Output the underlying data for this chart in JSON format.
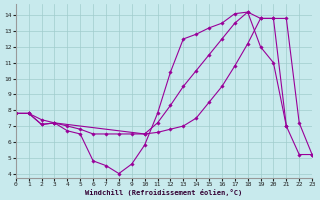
{
  "xlabel": "Windchill (Refroidissement éolien,°C)",
  "bg_color": "#c8eaed",
  "grid_color": "#a0cccc",
  "line_color": "#990099",
  "xlim": [
    0,
    23
  ],
  "ylim": [
    3.7,
    14.7
  ],
  "xticks": [
    0,
    1,
    2,
    3,
    4,
    5,
    6,
    7,
    8,
    9,
    10,
    11,
    12,
    13,
    14,
    15,
    16,
    17,
    18,
    19,
    20,
    21,
    22,
    23
  ],
  "yticks": [
    4,
    5,
    6,
    7,
    8,
    9,
    10,
    11,
    12,
    13,
    14
  ],
  "c1x": [
    0,
    1,
    2,
    3,
    4,
    5,
    6,
    7,
    8,
    9,
    10,
    11,
    12,
    13,
    14,
    15,
    16,
    17,
    18,
    19,
    20,
    21
  ],
  "c1y": [
    7.8,
    7.8,
    7.1,
    7.2,
    6.7,
    6.5,
    4.8,
    4.5,
    4.0,
    4.6,
    5.8,
    7.8,
    10.4,
    12.5,
    12.8,
    13.2,
    13.5,
    14.1,
    14.2,
    12.0,
    11.0,
    7.0
  ],
  "c2x": [
    0,
    1,
    2,
    3,
    4,
    5,
    6,
    7,
    8,
    9,
    10,
    11,
    12,
    13,
    14,
    15,
    16,
    17,
    18,
    19,
    20,
    21,
    22,
    23
  ],
  "c2y": [
    7.8,
    7.8,
    7.1,
    7.2,
    7.0,
    6.8,
    6.5,
    6.5,
    6.5,
    6.5,
    6.5,
    6.6,
    6.8,
    7.0,
    7.5,
    8.5,
    9.5,
    10.8,
    12.2,
    13.8,
    13.8,
    7.0,
    5.2,
    5.2
  ],
  "c3x": [
    0,
    1,
    2,
    3,
    10,
    11,
    12,
    13,
    14,
    15,
    16,
    17,
    18,
    19,
    20,
    21,
    22,
    23
  ],
  "c3y": [
    7.8,
    7.8,
    7.4,
    7.2,
    6.5,
    7.2,
    8.3,
    9.5,
    10.5,
    11.5,
    12.5,
    13.5,
    14.2,
    13.8,
    13.8,
    13.8,
    7.2,
    5.2
  ]
}
